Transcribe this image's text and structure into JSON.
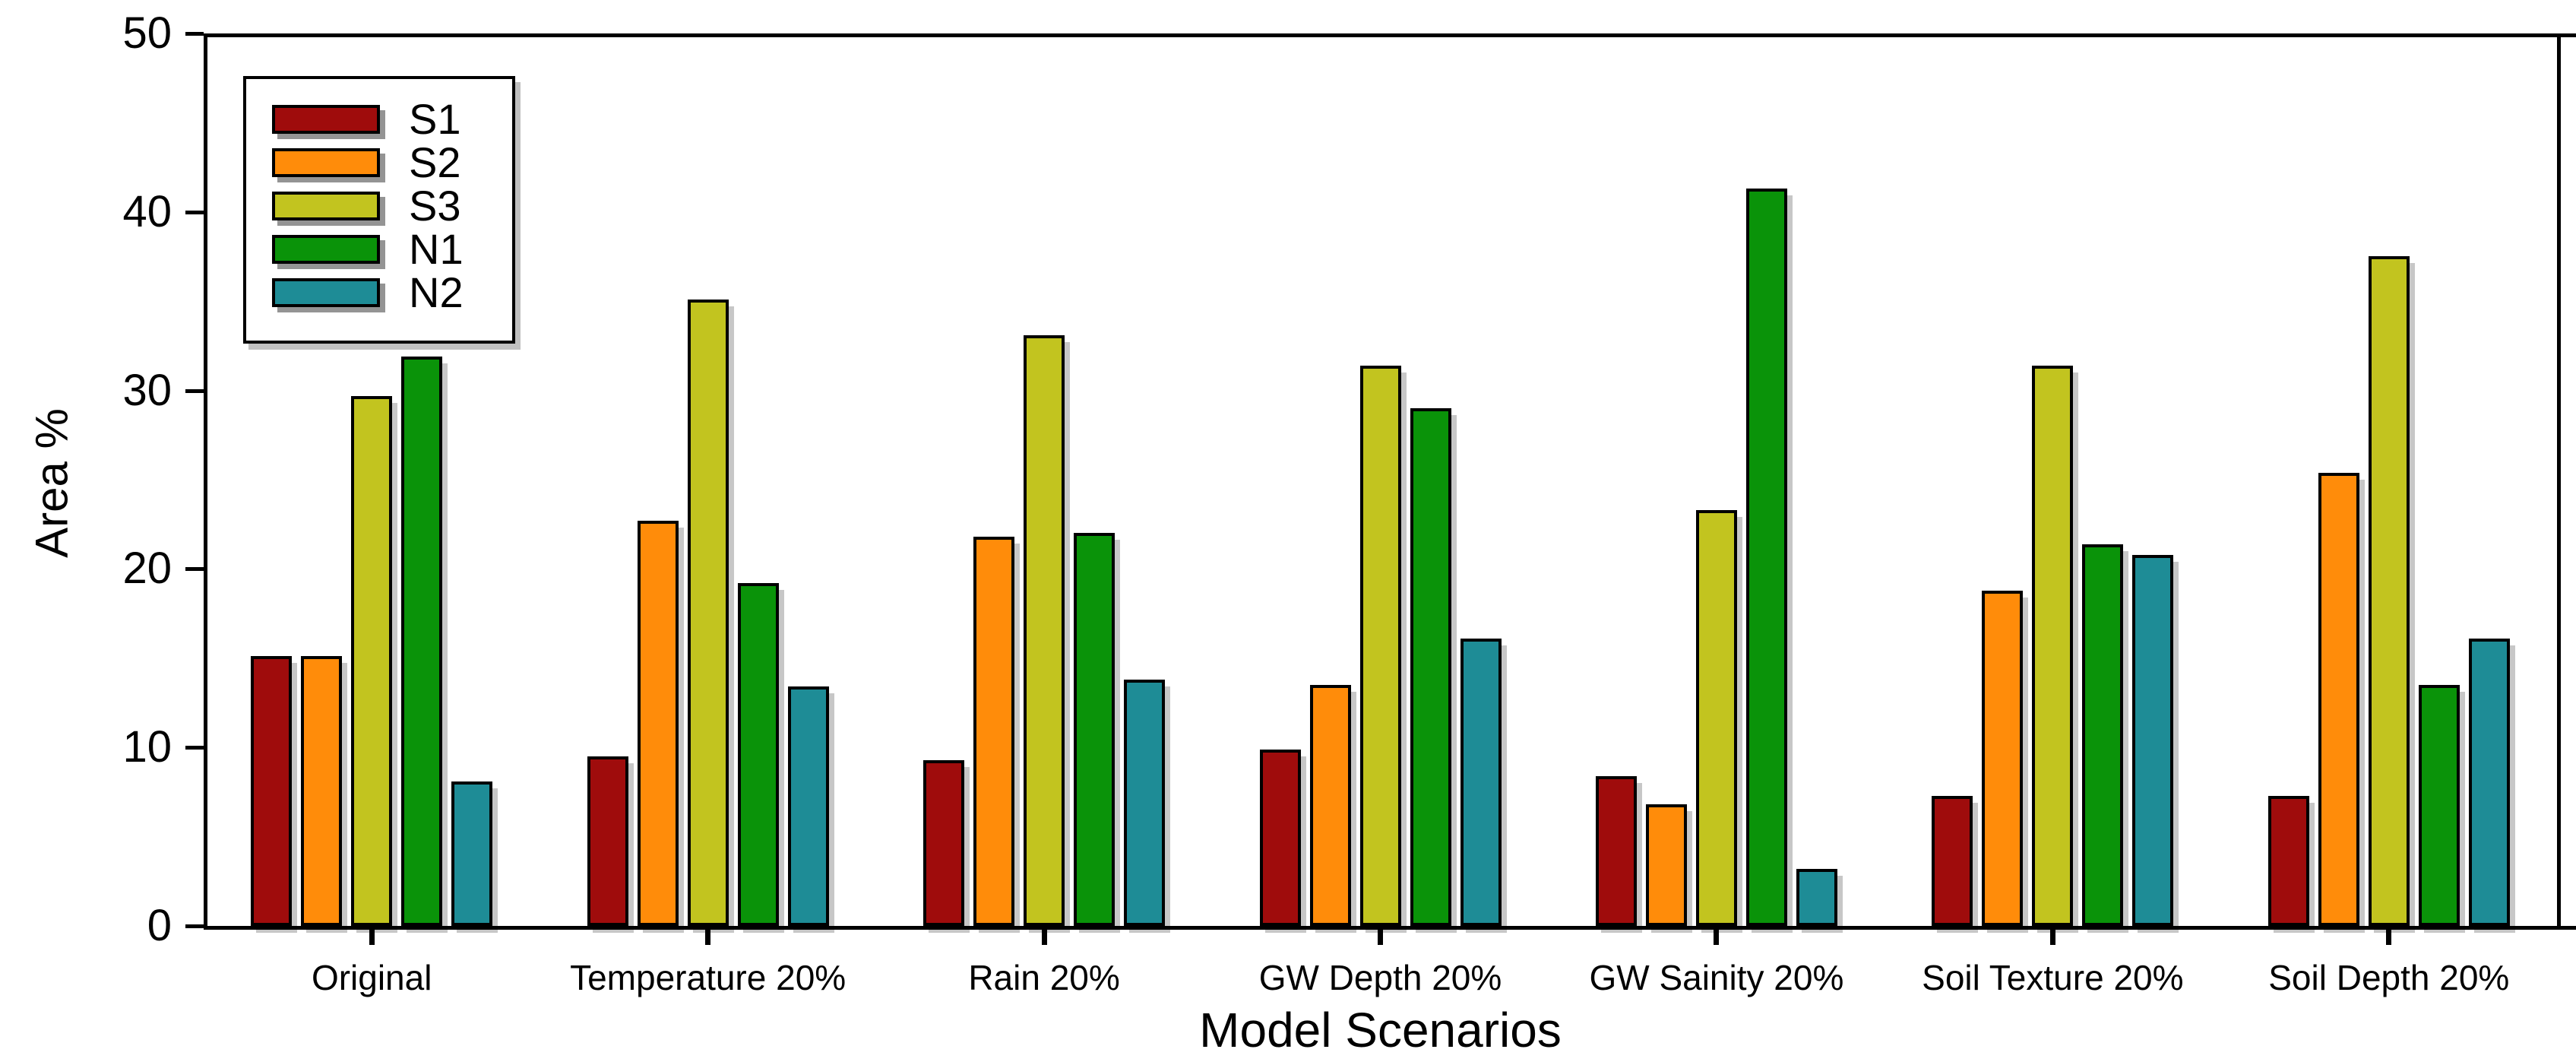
{
  "chart_data": {
    "type": "bar",
    "title": "",
    "xlabel": "Model Scenarios",
    "ylabel": "Area %",
    "categories": [
      "Original",
      "Temperature 20%",
      "Rain 20%",
      "GW Depth 20%",
      "GW Sainity 20%",
      "Soil Texture 20%",
      "Soil Depth 20%"
    ],
    "series": [
      {
        "name": "S1",
        "color": "#9f0c0c",
        "values": [
          15.1,
          9.5,
          9.3,
          9.9,
          8.4,
          7.3,
          7.3
        ]
      },
      {
        "name": "S2",
        "color": "#ff8c0a",
        "values": [
          15.1,
          22.7,
          21.8,
          13.5,
          6.8,
          18.8,
          25.4
        ]
      },
      {
        "name": "S3",
        "color": "#c2c41f",
        "values": [
          29.7,
          35.1,
          33.1,
          31.4,
          23.3,
          31.4,
          37.5
        ]
      },
      {
        "name": "N1",
        "color": "#0a9309",
        "values": [
          31.9,
          19.2,
          22.0,
          29.0,
          41.3,
          21.4,
          13.5
        ]
      },
      {
        "name": "N2",
        "color": "#1e8c96",
        "values": [
          8.1,
          13.4,
          13.8,
          16.1,
          3.2,
          20.8,
          16.1
        ]
      }
    ],
    "ylim": [
      0,
      50
    ],
    "yticks": [
      "0",
      "10",
      "20",
      "30",
      "40",
      "50"
    ],
    "legend_position": "upper-left",
    "grid": false,
    "axis_color": "#000000",
    "background_color": "#ffffff"
  }
}
